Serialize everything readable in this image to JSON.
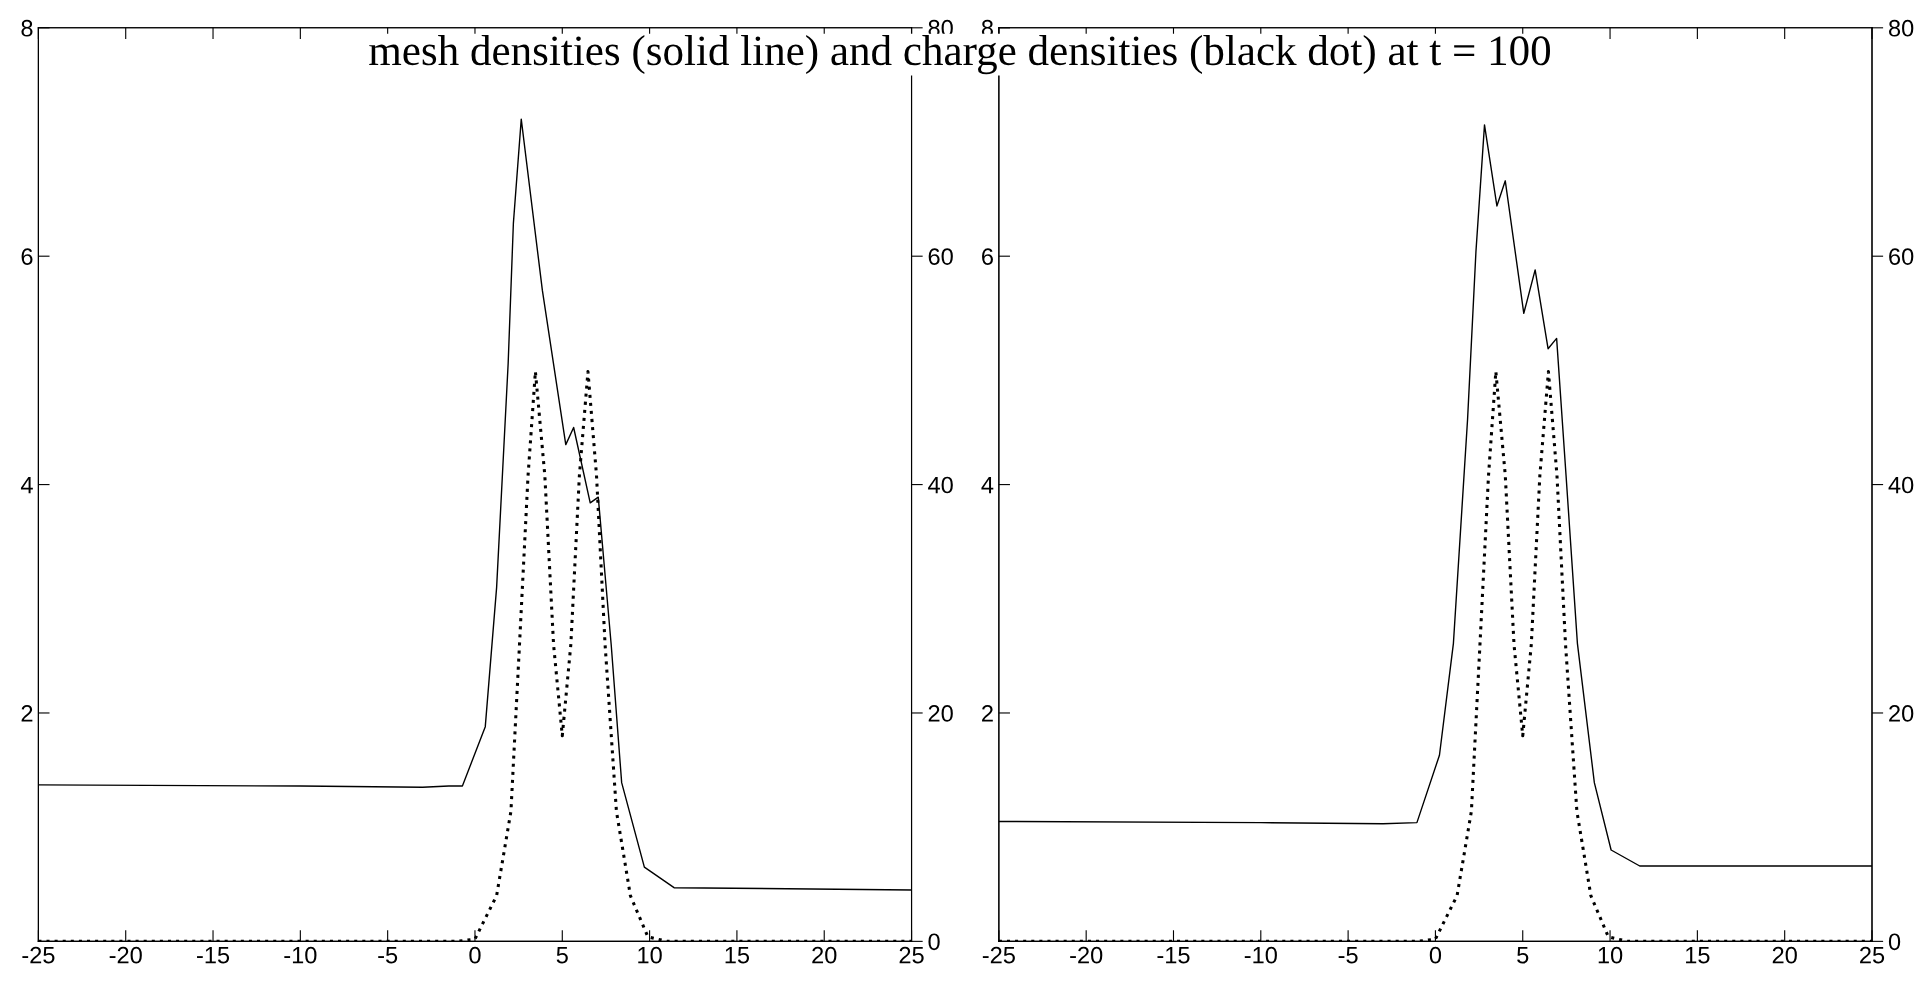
{
  "chart_data": [
    {
      "type": "line",
      "title": "mesh densities (solid line) and charge densities (black dot) at t = 100",
      "xlim": [
        -25,
        25
      ],
      "xticks": [
        -25,
        -20,
        -15,
        -10,
        -5,
        0,
        5,
        10,
        15,
        20,
        25
      ],
      "ylim": [
        0,
        8
      ],
      "yticks": [
        2,
        4,
        6,
        8
      ],
      "y2lim": [
        0,
        80
      ],
      "y2ticks": [
        0,
        20,
        40,
        60,
        80
      ],
      "grid": false,
      "legend": false,
      "series": [
        {
          "color": "#000000",
          "line_style": "solid",
          "x": [
            -25,
            -10,
            -3,
            -1.5,
            -0.72,
            0.59,
            1.24,
            1.9,
            2.2,
            2.65,
            3.86,
            5.2,
            5.65,
            6.6,
            7.06,
            7.8,
            8.4,
            9.7,
            11.4,
            25
          ],
          "values": [
            1.37,
            1.36,
            1.35,
            1.36,
            1.36,
            1.88,
            3.1,
            5.06,
            6.29,
            7.2,
            5.7,
            4.35,
            4.5,
            3.84,
            3.89,
            2.6,
            1.39,
            0.65,
            0.47,
            0.45
          ]
        },
        {
          "color": "#000000",
          "line_style": "dotted",
          "axis": "y2",
          "x": [
            -25,
            -1,
            0,
            1.24,
            2.06,
            2.55,
            3.04,
            3.46,
            4.0,
            4.5,
            5.0,
            5.49,
            5.98,
            6.47,
            6.96,
            7.45,
            8.1,
            8.9,
            9.9,
            11,
            25
          ],
          "values": [
            0,
            0,
            0.2,
            4,
            11.4,
            26,
            40.8,
            49.9,
            40.8,
            26,
            18,
            26,
            40.8,
            49.9,
            40.8,
            26,
            11.4,
            4,
            0.4,
            0,
            0
          ]
        }
      ]
    },
    {
      "type": "line",
      "xlim": [
        -25,
        25
      ],
      "xticks": [
        -25,
        -20,
        -15,
        -10,
        -5,
        0,
        5,
        10,
        15,
        20,
        25
      ],
      "ylim": [
        0,
        8
      ],
      "yticks": [
        2,
        4,
        6,
        8
      ],
      "y2lim": [
        0,
        80
      ],
      "y2ticks": [
        0,
        20,
        40,
        60,
        80
      ],
      "grid": false,
      "legend": false,
      "series": [
        {
          "color": "#000000",
          "line_style": "solid",
          "x": [
            -25,
            -10,
            -3,
            -1.06,
            0.23,
            1.03,
            1.84,
            2.32,
            2.81,
            3.52,
            4.0,
            5.06,
            5.71,
            6.45,
            6.94,
            7.48,
            8.13,
            9.1,
            10.06,
            11.7,
            25
          ],
          "values": [
            1.05,
            1.04,
            1.03,
            1.04,
            1.63,
            2.61,
            4.57,
            6.04,
            7.15,
            6.44,
            6.66,
            5.5,
            5.88,
            5.19,
            5.28,
            4.08,
            2.61,
            1.39,
            0.8,
            0.66,
            0.66
          ]
        },
        {
          "color": "#000000",
          "line_style": "dotted",
          "axis": "y2",
          "x": [
            -25,
            -1,
            0,
            1.24,
            2.06,
            2.55,
            3.04,
            3.46,
            4.0,
            4.5,
            5.0,
            5.49,
            5.98,
            6.47,
            6.96,
            7.45,
            8.1,
            8.9,
            9.9,
            11,
            25
          ],
          "values": [
            0,
            0,
            0.2,
            4,
            11.4,
            26,
            40.8,
            49.9,
            40.8,
            26,
            18,
            26,
            40.8,
            49.9,
            40.8,
            26,
            11.4,
            4,
            0.4,
            0,
            0
          ]
        }
      ]
    }
  ]
}
